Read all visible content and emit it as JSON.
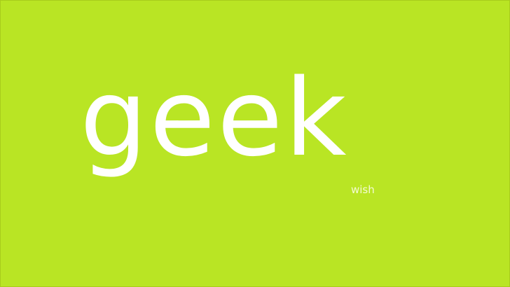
{
  "logo": {
    "wordmark": "geek",
    "tagline": "wish"
  },
  "colors": {
    "background": "#b9e524",
    "text": "#ffffff"
  }
}
